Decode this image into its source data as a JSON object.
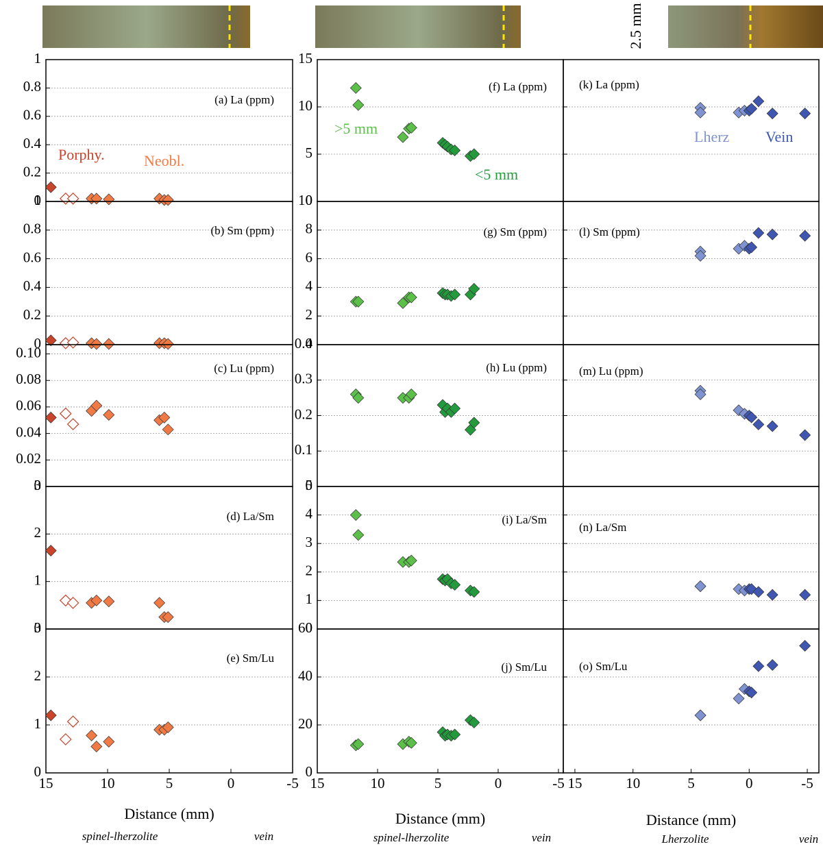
{
  "scale_label": "2.5 mm",
  "chart_data": [
    {
      "type": "scatter",
      "title": "(a) La (ppm)",
      "xlim": [
        15,
        -5
      ],
      "ylim": [
        0,
        1
      ],
      "yticks": [
        0,
        0.2,
        0.4,
        0.6,
        0.8,
        1
      ],
      "grid": true,
      "series": [
        {
          "name": "Porphy.",
          "color": "#c8442a",
          "filled": true,
          "x": [
            14.6
          ],
          "values": [
            0.1
          ]
        },
        {
          "color": "#c8442a",
          "filled": false,
          "x": [
            13.4,
            12.8
          ],
          "values": [
            0.02,
            0.02
          ]
        },
        {
          "name": "Neobl.",
          "color": "#f07a45",
          "filled": true,
          "x": [
            11.3,
            10.9,
            9.9,
            5.8,
            5.4,
            5.1
          ],
          "values": [
            0.02,
            0.02,
            0.015,
            0.02,
            0.01,
            0.01
          ]
        }
      ]
    },
    {
      "type": "scatter",
      "title": "(b) Sm (ppm)",
      "xlim": [
        15,
        -5
      ],
      "ylim": [
        0,
        1
      ],
      "yticks": [
        0,
        0.2,
        0.4,
        0.6,
        0.8,
        1
      ],
      "grid": true,
      "series": [
        {
          "color": "#c8442a",
          "filled": true,
          "x": [
            14.6
          ],
          "values": [
            0.03
          ]
        },
        {
          "color": "#c8442a",
          "filled": false,
          "x": [
            13.4,
            12.8
          ],
          "values": [
            0.01,
            0.015
          ]
        },
        {
          "color": "#f07a45",
          "filled": true,
          "x": [
            11.3,
            10.9,
            9.9,
            5.8,
            5.4,
            5.1
          ],
          "values": [
            0.01,
            0.005,
            0.005,
            0.01,
            0.01,
            0.005
          ]
        }
      ]
    },
    {
      "type": "scatter",
      "title": "(c) Lu (ppm)",
      "xlim": [
        15,
        -5
      ],
      "ylim": [
        0,
        0.107
      ],
      "yticks": [
        0,
        0.02,
        0.04,
        0.06,
        0.08,
        {
          "value": 0.1,
          "label": "0.10"
        }
      ],
      "grid": true,
      "series": [
        {
          "color": "#c8442a",
          "filled": true,
          "x": [
            14.6
          ],
          "values": [
            0.052
          ]
        },
        {
          "color": "#c8442a",
          "filled": false,
          "x": [
            13.4,
            12.8
          ],
          "values": [
            0.055,
            0.047
          ]
        },
        {
          "color": "#f07a45",
          "filled": true,
          "x": [
            11.3,
            10.9,
            9.9,
            5.8,
            5.4,
            5.1
          ],
          "values": [
            0.057,
            0.061,
            0.054,
            0.05,
            0.052,
            0.043
          ]
        }
      ]
    },
    {
      "type": "scatter",
      "title": "(d) La/Sm",
      "xlim": [
        15,
        -5
      ],
      "ylim": [
        0,
        3
      ],
      "yticks": [
        0,
        1,
        2,
        3
      ],
      "grid": true,
      "series": [
        {
          "color": "#c8442a",
          "filled": true,
          "x": [
            14.6
          ],
          "values": [
            1.65
          ]
        },
        {
          "color": "#c8442a",
          "filled": false,
          "x": [
            13.4,
            12.8
          ],
          "values": [
            0.6,
            0.55
          ]
        },
        {
          "color": "#f07a45",
          "filled": true,
          "x": [
            11.3,
            10.9,
            9.9,
            5.8,
            5.4,
            5.1
          ],
          "values": [
            0.55,
            0.6,
            0.58,
            0.55,
            0.25,
            0.25
          ]
        }
      ]
    },
    {
      "type": "scatter",
      "title": "(e) Sm/Lu",
      "xlim": [
        15,
        -5
      ],
      "ylim": [
        0,
        3
      ],
      "yticks": [
        0,
        1,
        2,
        3
      ],
      "xticks": [
        15,
        10,
        5,
        0,
        -5
      ],
      "grid": true,
      "xlabel": "Distance (mm)",
      "annotations": [
        "spinel-lherzolite",
        "vein"
      ],
      "series": [
        {
          "color": "#c8442a",
          "filled": true,
          "x": [
            14.6
          ],
          "values": [
            1.2
          ]
        },
        {
          "color": "#c8442a",
          "filled": false,
          "x": [
            13.4,
            12.8
          ],
          "values": [
            0.7,
            1.07
          ]
        },
        {
          "color": "#f07a45",
          "filled": true,
          "x": [
            11.3,
            10.9,
            9.9,
            5.8,
            5.4,
            5.1
          ],
          "values": [
            0.78,
            0.55,
            0.65,
            0.9,
            0.9,
            0.95
          ]
        }
      ]
    },
    {
      "type": "scatter",
      "title": "(f) La (ppm)",
      "xlim": [
        15,
        -5.4
      ],
      "ylim": [
        0,
        15
      ],
      "yticks": [
        0,
        5,
        10,
        15
      ],
      "grid": true,
      "series": [
        {
          "name": ">5 mm",
          "color": "#5cbf4a",
          "filled": true,
          "x": [
            11.8,
            11.6,
            7.9,
            7.4,
            7.2
          ],
          "values": [
            12,
            10.2,
            6.8,
            7.7,
            7.8
          ]
        },
        {
          "name": "<5 mm",
          "color": "#239a3c",
          "filled": true,
          "x": [
            4.6,
            4.4,
            4.2,
            3.9,
            3.6,
            2.3,
            2
          ],
          "values": [
            6.2,
            6,
            5.8,
            5.5,
            5.4,
            4.8,
            5
          ]
        }
      ]
    },
    {
      "type": "scatter",
      "title": "(g) Sm (ppm)",
      "xlim": [
        15,
        -5.4
      ],
      "ylim": [
        0,
        10
      ],
      "yticks": [
        0,
        2,
        4,
        6,
        8,
        10
      ],
      "grid": true,
      "series": [
        {
          "color": "#5cbf4a",
          "filled": true,
          "x": [
            11.8,
            11.6,
            7.9,
            7.4,
            7.2
          ],
          "values": [
            3,
            3,
            2.9,
            3.3,
            3.3
          ]
        },
        {
          "color": "#239a3c",
          "filled": true,
          "x": [
            4.6,
            4.4,
            4.2,
            3.9,
            3.6,
            2.3,
            2
          ],
          "values": [
            3.6,
            3.5,
            3.5,
            3.4,
            3.5,
            3.5,
            3.9
          ]
        }
      ]
    },
    {
      "type": "scatter",
      "title": "(h) Lu (ppm)",
      "xlim": [
        15,
        -5.4
      ],
      "ylim": [
        0,
        0.4
      ],
      "yticks": [
        0,
        0.1,
        0.2,
        0.3,
        0.4
      ],
      "grid": true,
      "series": [
        {
          "color": "#5cbf4a",
          "filled": true,
          "x": [
            11.8,
            11.6,
            7.9,
            7.4,
            7.2
          ],
          "values": [
            0.26,
            0.25,
            0.25,
            0.25,
            0.26
          ]
        },
        {
          "color": "#239a3c",
          "filled": true,
          "x": [
            4.6,
            4.4,
            4.2,
            3.9,
            3.6,
            2.3,
            2
          ],
          "values": [
            0.23,
            0.21,
            0.22,
            0.21,
            0.22,
            0.16,
            0.18
          ]
        }
      ]
    },
    {
      "type": "scatter",
      "title": "(i) La/Sm",
      "xlim": [
        15,
        -5.4
      ],
      "ylim": [
        0,
        5
      ],
      "yticks": [
        0,
        1,
        2,
        3,
        4,
        5
      ],
      "grid": true,
      "series": [
        {
          "color": "#5cbf4a",
          "filled": true,
          "x": [
            11.8,
            11.6,
            7.9,
            7.4,
            7.2
          ],
          "values": [
            4,
            3.3,
            2.35,
            2.35,
            2.4
          ]
        },
        {
          "color": "#239a3c",
          "filled": true,
          "x": [
            4.6,
            4.4,
            4.2,
            3.9,
            3.6,
            2.3,
            2
          ],
          "values": [
            1.75,
            1.7,
            1.75,
            1.6,
            1.55,
            1.35,
            1.3
          ]
        }
      ]
    },
    {
      "type": "scatter",
      "title": "(j) Sm/Lu",
      "xlim": [
        15,
        -5.4
      ],
      "ylim": [
        0,
        60
      ],
      "yticks": [
        0,
        20,
        40,
        60
      ],
      "xticks": [
        15,
        10,
        5,
        0,
        -5
      ],
      "grid": true,
      "xlabel": "Distance (mm)",
      "annotations": [
        "spinel-lherzolite",
        "vein"
      ],
      "series": [
        {
          "color": "#5cbf4a",
          "filled": true,
          "x": [
            11.8,
            11.6,
            7.9,
            7.4,
            7.2
          ],
          "values": [
            11.5,
            12,
            12,
            13,
            12.5
          ]
        },
        {
          "color": "#239a3c",
          "filled": true,
          "x": [
            4.6,
            4.4,
            4.2,
            3.9,
            3.6,
            2.3,
            2
          ],
          "values": [
            17,
            15.5,
            16,
            15.5,
            16,
            22,
            21
          ]
        }
      ]
    },
    {
      "type": "scatter",
      "title": "(k) La (ppm)",
      "xlim": [
        16,
        -6
      ],
      "ylim": [
        0,
        15
      ],
      "yticks": [
        0,
        5,
        10,
        15
      ],
      "ytick_labels": false,
      "grid": true,
      "series": [
        {
          "name": "Lherz",
          "color": "#7f93d0",
          "filled": true,
          "x": [
            4.2,
            4.2,
            0.9,
            0.4
          ],
          "values": [
            9.9,
            9.4,
            9.4,
            9.6
          ]
        },
        {
          "name": "Vein",
          "color": "#3f57b0",
          "filled": true,
          "x": [
            0,
            -0.2,
            -0.8,
            -2,
            -4.8
          ],
          "values": [
            9.6,
            9.8,
            10.6,
            9.3,
            9.3
          ]
        }
      ]
    },
    {
      "type": "scatter",
      "title": "(l) Sm (ppm)",
      "xlim": [
        16,
        -6
      ],
      "ylim": [
        0,
        10
      ],
      "yticks": [
        0,
        2,
        4,
        6,
        8,
        10
      ],
      "ytick_labels": false,
      "grid": true,
      "series": [
        {
          "color": "#7f93d0",
          "filled": true,
          "x": [
            4.2,
            4.2,
            0.9,
            0.4
          ],
          "values": [
            6.5,
            6.2,
            6.7,
            6.9
          ]
        },
        {
          "color": "#3f57b0",
          "filled": true,
          "x": [
            0,
            -0.2,
            -0.8,
            -2,
            -4.8
          ],
          "values": [
            6.7,
            6.8,
            7.8,
            7.7,
            7.6
          ]
        }
      ]
    },
    {
      "type": "scatter",
      "title": "(m) Lu (ppm)",
      "xlim": [
        16,
        -6
      ],
      "ylim": [
        0,
        0.4
      ],
      "yticks": [
        0,
        0.1,
        0.2,
        0.3,
        0.4
      ],
      "ytick_labels": false,
      "grid": true,
      "series": [
        {
          "color": "#7f93d0",
          "filled": true,
          "x": [
            4.2,
            4.2,
            0.9,
            0.4
          ],
          "values": [
            0.27,
            0.26,
            0.215,
            0.205
          ]
        },
        {
          "color": "#3f57b0",
          "filled": true,
          "x": [
            0,
            -0.2,
            -0.8,
            -2,
            -4.8
          ],
          "values": [
            0.2,
            0.195,
            0.175,
            0.17,
            0.145
          ]
        }
      ]
    },
    {
      "type": "scatter",
      "title": "(n) La/Sm",
      "xlim": [
        16,
        -6
      ],
      "ylim": [
        0,
        5
      ],
      "yticks": [
        0,
        1,
        2,
        3,
        4,
        5
      ],
      "ytick_labels": false,
      "grid": true,
      "series": [
        {
          "color": "#7f93d0",
          "filled": true,
          "x": [
            4.2,
            4.2,
            0.9,
            0.4
          ],
          "values": [
            1.5,
            1.5,
            1.4,
            1.35
          ]
        },
        {
          "color": "#3f57b0",
          "filled": true,
          "x": [
            0,
            -0.2,
            -0.8,
            -2,
            -4.8
          ],
          "values": [
            1.4,
            1.4,
            1.3,
            1.2,
            1.2
          ]
        }
      ]
    },
    {
      "type": "scatter",
      "title": "(o) Sm/Lu",
      "xlim": [
        16,
        -6
      ],
      "ylim": [
        0,
        60
      ],
      "yticks": [
        0,
        20,
        40,
        60
      ],
      "ytick_labels": false,
      "xticks": [
        15,
        10,
        5,
        0,
        -5
      ],
      "grid": true,
      "xlabel": "Distance (mm)",
      "annotations": [
        "Lherzolite",
        "vein"
      ],
      "series": [
        {
          "color": "#7f93d0",
          "filled": true,
          "x": [
            4.2,
            4.2,
            0.9,
            0.4
          ],
          "values": [
            24,
            24,
            31,
            35
          ]
        },
        {
          "color": "#3f57b0",
          "filled": true,
          "x": [
            0,
            -0.2,
            -0.8,
            -2,
            -4.8
          ],
          "values": [
            34,
            33.5,
            44.5,
            45,
            53
          ]
        }
      ]
    }
  ]
}
